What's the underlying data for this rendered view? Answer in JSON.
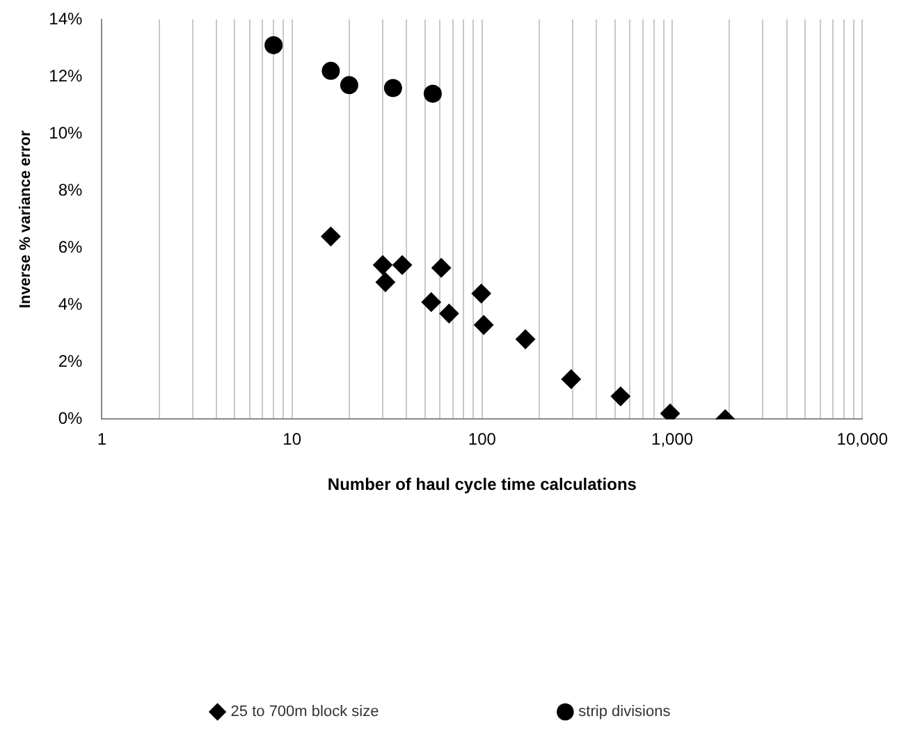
{
  "chart_data": {
    "type": "scatter",
    "xlabel": "Number of haul cycle time calculations",
    "ylabel": "Inverse % variance error",
    "log": "x",
    "grid": "x",
    "legend": "bottom",
    "xlim": [
      1,
      10000
    ],
    "xticks": [
      {
        "value": 1,
        "label": "1"
      },
      {
        "value": 2,
        "label": null
      },
      {
        "value": 3,
        "label": null
      },
      {
        "value": 4,
        "label": null
      },
      {
        "value": 5,
        "label": null
      },
      {
        "value": 6,
        "label": null
      },
      {
        "value": 7,
        "label": null
      },
      {
        "value": 8,
        "label": null
      },
      {
        "value": 9,
        "label": null
      },
      {
        "value": 10,
        "label": "10"
      },
      {
        "value": 20,
        "label": null
      },
      {
        "value": 30,
        "label": null
      },
      {
        "value": 40,
        "label": null
      },
      {
        "value": 50,
        "label": null
      },
      {
        "value": 60,
        "label": null
      },
      {
        "value": 70,
        "label": null
      },
      {
        "value": 80,
        "label": null
      },
      {
        "value": 90,
        "label": null
      },
      {
        "value": 100,
        "label": "100"
      },
      {
        "value": 200,
        "label": null
      },
      {
        "value": 300,
        "label": null
      },
      {
        "value": 400,
        "label": null
      },
      {
        "value": 500,
        "label": null
      },
      {
        "value": 600,
        "label": null
      },
      {
        "value": 700,
        "label": null
      },
      {
        "value": 800,
        "label": null
      },
      {
        "value": 900,
        "label": null
      },
      {
        "value": 1000,
        "label": "1,000"
      },
      {
        "value": 2000,
        "label": null
      },
      {
        "value": 3000,
        "label": null
      },
      {
        "value": 4000,
        "label": null
      },
      {
        "value": 5000,
        "label": null
      },
      {
        "value": 6000,
        "label": null
      },
      {
        "value": 7000,
        "label": null
      },
      {
        "value": 8000,
        "label": null
      },
      {
        "value": 9000,
        "label": null
      },
      {
        "value": 10000,
        "label": "10,000"
      }
    ],
    "ylim": [
      0,
      14
    ],
    "yticks": [
      {
        "value": 0,
        "label": "0%"
      },
      {
        "value": 2,
        "label": "2%"
      },
      {
        "value": 4,
        "label": "4%"
      },
      {
        "value": 6,
        "label": "6%"
      },
      {
        "value": 8,
        "label": "8%"
      },
      {
        "value": 10,
        "label": "10%"
      },
      {
        "value": 12,
        "label": "12%"
      },
      {
        "value": 14,
        "label": "14%"
      }
    ],
    "series": [
      {
        "name": "25 to 700m block size",
        "color": "#000000",
        "marker": "diamond",
        "x": [
          16,
          30,
          38,
          61,
          31,
          99,
          54,
          67,
          102,
          169,
          294,
          535,
          975,
          1900
        ],
        "values": [
          6.4,
          5.4,
          5.4,
          5.3,
          4.8,
          4.4,
          4.1,
          3.7,
          3.3,
          2.8,
          1.4,
          0.8,
          0.2,
          0
        ]
      },
      {
        "name": "strip divisions",
        "color": "#000000",
        "marker": "circle",
        "x": [
          8,
          16,
          20,
          34,
          55
        ],
        "values": [
          13.1,
          12.2,
          11.7,
          11.6,
          11.4
        ]
      }
    ]
  }
}
